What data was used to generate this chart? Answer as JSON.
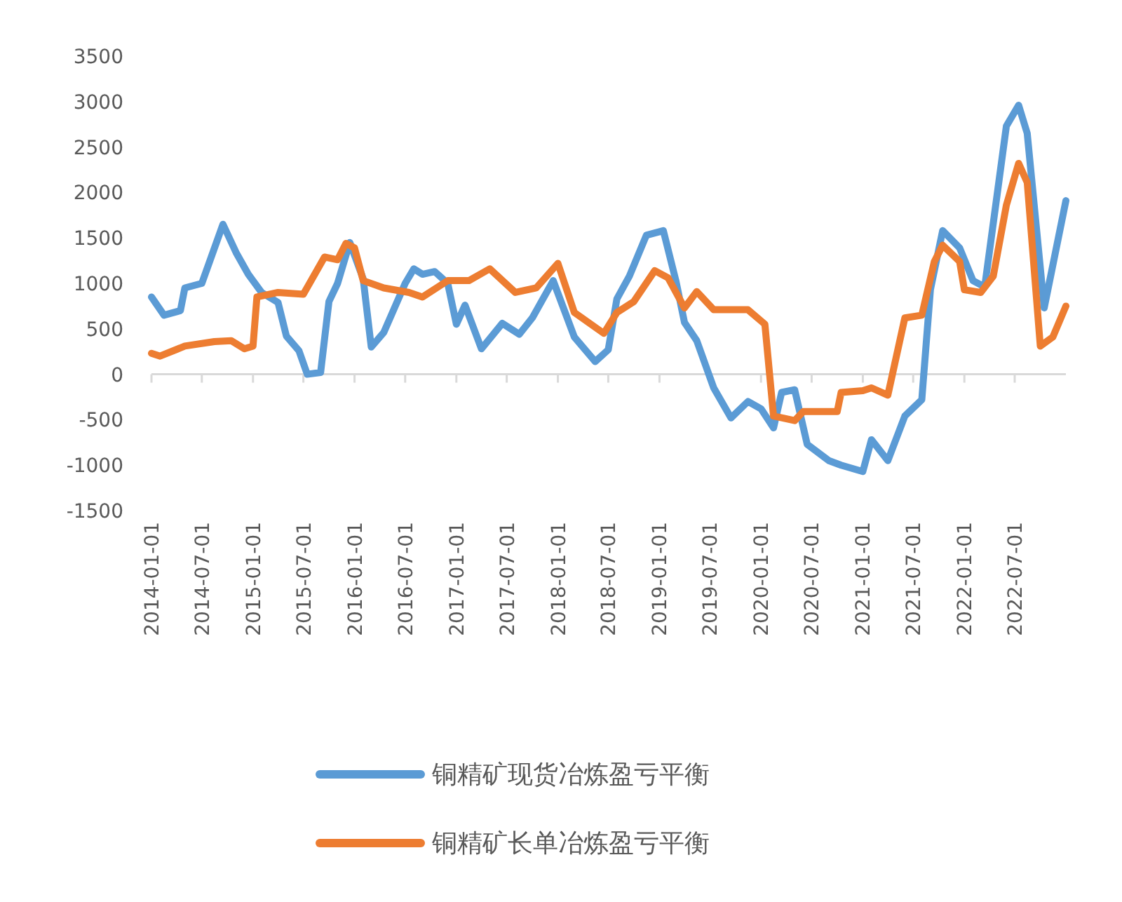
{
  "chart_data": {
    "type": "line",
    "xlim": [
      "2014-01-01",
      "2023-01-01"
    ],
    "xticks": [
      "2014-01-01",
      "2014-07-01",
      "2015-01-01",
      "2015-07-01",
      "2016-01-01",
      "2016-07-01",
      "2017-01-01",
      "2017-07-01",
      "2018-01-01",
      "2018-07-01",
      "2019-01-01",
      "2019-07-01",
      "2020-01-01",
      "2020-07-01",
      "2021-01-01",
      "2021-07-01",
      "2022-01-01",
      "2022-07-01"
    ],
    "ylim": [
      -1500,
      3500
    ],
    "yticks": [
      -1500,
      -1000,
      -500,
      0,
      500,
      1000,
      1500,
      2000,
      2500,
      3000,
      3500
    ],
    "grid": false,
    "ref_lines": [
      {
        "axis": "y",
        "value": 0,
        "color": "#d9d9d9",
        "line_style": "solid"
      }
    ],
    "legend": "bottom",
    "marker": "none",
    "line_style": "solid",
    "series": [
      {
        "name": "铜精矿现货冶炼盈亏平衡",
        "color": "#5b9bd5",
        "x": [
          "2014-01-01",
          "2014-02-15",
          "2014-04-15",
          "2014-05-01",
          "2014-07-01",
          "2014-09-15",
          "2014-11-01",
          "2014-12-15",
          "2015-02-01",
          "2015-04-01",
          "2015-05-01",
          "2015-06-15",
          "2015-07-15",
          "2015-09-01",
          "2015-10-01",
          "2015-11-01",
          "2015-12-15",
          "2016-02-01",
          "2016-03-01",
          "2016-04-15",
          "2016-07-01",
          "2016-08-01",
          "2016-09-01",
          "2016-10-15",
          "2016-12-01",
          "2017-01-01",
          "2017-02-01",
          "2017-04-01",
          "2017-06-15",
          "2017-08-15",
          "2017-10-01",
          "2017-12-15",
          "2018-03-01",
          "2018-05-15",
          "2018-07-01",
          "2018-08-01",
          "2018-09-15",
          "2018-11-15",
          "2019-01-15",
          "2019-03-01",
          "2019-04-01",
          "2019-05-15",
          "2019-07-15",
          "2019-09-15",
          "2019-11-15",
          "2020-01-01",
          "2020-02-15",
          "2020-03-15",
          "2020-05-01",
          "2020-06-15",
          "2020-09-01",
          "2020-10-15",
          "2021-01-01",
          "2021-02-01",
          "2021-04-01",
          "2021-06-01",
          "2021-08-01",
          "2021-09-01",
          "2021-10-15",
          "2021-12-15",
          "2022-02-01",
          "2022-03-15",
          "2022-06-01",
          "2022-07-15",
          "2022-08-15",
          "2022-10-15",
          "2023-01-01"
        ],
        "values": [
          850,
          650,
          700,
          950,
          1000,
          1650,
          1340,
          1100,
          900,
          790,
          420,
          260,
          0,
          20,
          800,
          1000,
          1450,
          1050,
          300,
          460,
          1000,
          1160,
          1100,
          1130,
          1000,
          550,
          760,
          280,
          560,
          440,
          620,
          1030,
          410,
          140,
          270,
          830,
          1080,
          1530,
          1580,
          1030,
          570,
          370,
          -150,
          -480,
          -300,
          -380,
          -590,
          -200,
          -170,
          -770,
          -950,
          -1000,
          -1070,
          -720,
          -950,
          -460,
          -280,
          930,
          1580,
          1390,
          1030,
          960,
          2730,
          2960,
          2650,
          730,
          1910
        ]
      },
      {
        "name": "铜精矿长单冶炼盈亏平衡",
        "color": "#ed7d31",
        "x": [
          "2014-01-01",
          "2014-02-01",
          "2014-05-01",
          "2014-08-15",
          "2014-10-15",
          "2014-12-01",
          "2015-01-01",
          "2015-01-15",
          "2015-04-01",
          "2015-07-01",
          "2015-09-15",
          "2015-11-01",
          "2015-12-01",
          "2016-01-01",
          "2016-02-01",
          "2016-04-15",
          "2016-07-15",
          "2016-09-01",
          "2016-12-01",
          "2017-02-15",
          "2017-05-01",
          "2017-08-01",
          "2017-10-15",
          "2018-01-01",
          "2018-03-01",
          "2018-06-15",
          "2018-08-01",
          "2018-10-01",
          "2018-12-15",
          "2019-02-01",
          "2019-04-01",
          "2019-05-15",
          "2019-07-15",
          "2019-11-15",
          "2020-01-15",
          "2020-02-15",
          "2020-05-01",
          "2020-06-01",
          "2020-10-01",
          "2020-10-15",
          "2021-01-01",
          "2021-02-01",
          "2021-04-01",
          "2021-06-01",
          "2021-08-01",
          "2021-09-15",
          "2021-10-15",
          "2021-12-15",
          "2022-01-01",
          "2022-03-01",
          "2022-04-15",
          "2022-06-01",
          "2022-07-15",
          "2022-08-15",
          "2022-10-01",
          "2022-11-15",
          "2023-01-01"
        ],
        "values": [
          230,
          200,
          310,
          360,
          370,
          280,
          310,
          850,
          900,
          880,
          1290,
          1260,
          1440,
          1390,
          1030,
          950,
          900,
          850,
          1030,
          1030,
          1160,
          900,
          950,
          1220,
          680,
          450,
          680,
          800,
          1140,
          1060,
          730,
          910,
          710,
          710,
          550,
          -460,
          -510,
          -410,
          -410,
          -200,
          -180,
          -150,
          -230,
          620,
          650,
          1240,
          1420,
          1240,
          930,
          900,
          1080,
          1860,
          2320,
          2110,
          310,
          410,
          750
        ]
      }
    ]
  }
}
